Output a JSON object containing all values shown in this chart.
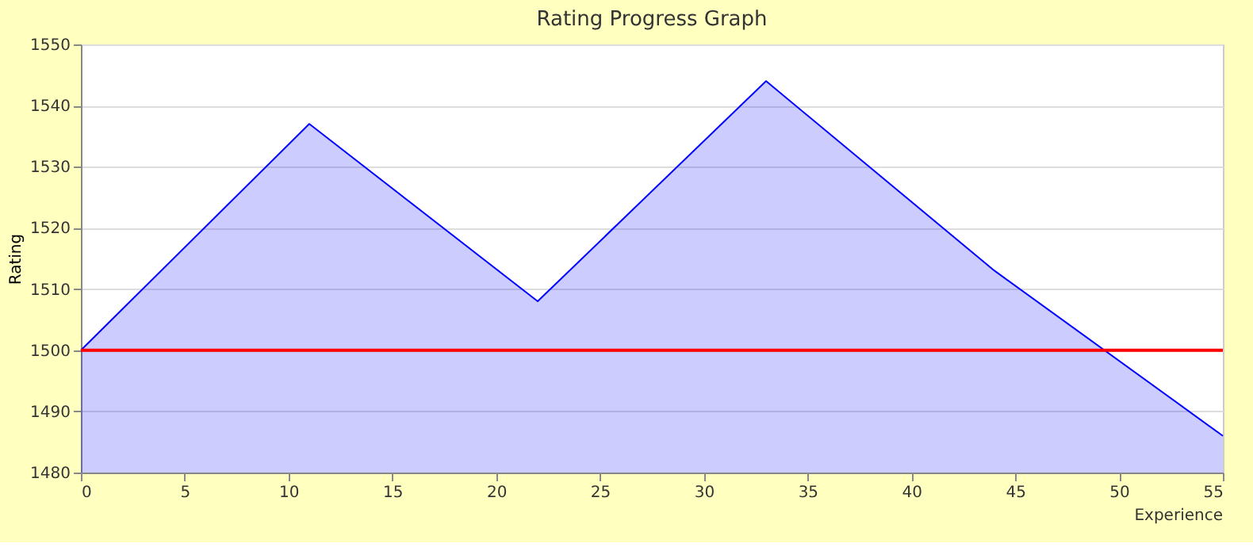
{
  "chart_data": {
    "type": "area",
    "title": "Rating Progress Graph",
    "xlabel": "Experience",
    "ylabel": "Rating",
    "x": [
      0,
      11,
      22,
      33,
      44,
      55
    ],
    "series": [
      {
        "color": "#0000ff",
        "values": [
          1500,
          1537,
          1508,
          1544,
          1513,
          1486
        ]
      }
    ],
    "xlim": [
      0,
      55
    ],
    "xticks": [
      0,
      5,
      10,
      15,
      20,
      25,
      30,
      35,
      40,
      45,
      50,
      55
    ],
    "ylim": [
      1480,
      1550
    ],
    "yticks": [
      1480,
      1490,
      1500,
      1510,
      1520,
      1530,
      1540,
      1550
    ],
    "ref_lines": [
      {
        "axis": "y",
        "value": 1500,
        "color": "#ff0000"
      }
    ],
    "grid": "y"
  }
}
